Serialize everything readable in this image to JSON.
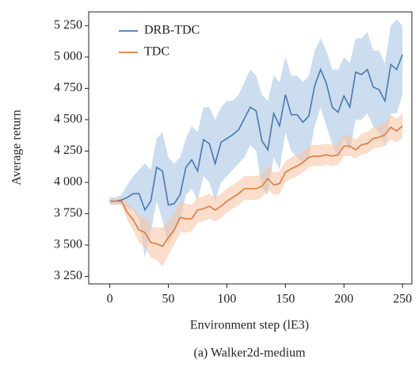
{
  "chart_data": {
    "type": "line",
    "caption": "(a) Walker2d-medium",
    "x_label": "Environment step (lE3)",
    "y_label": "Average return",
    "x": [
      0,
      5,
      10,
      15,
      20,
      25,
      30,
      35,
      40,
      45,
      50,
      55,
      60,
      65,
      70,
      75,
      80,
      85,
      90,
      95,
      100,
      105,
      110,
      115,
      120,
      125,
      130,
      135,
      140,
      145,
      150,
      155,
      160,
      165,
      170,
      175,
      180,
      185,
      190,
      195,
      200,
      205,
      210,
      215,
      220,
      225,
      230,
      235,
      240,
      245,
      250
    ],
    "xlim": [
      -18,
      258
    ],
    "xticks": [
      0,
      50,
      100,
      150,
      200,
      250
    ],
    "ylim": [
      3190,
      5360
    ],
    "yticks": [
      {
        "value": 3250,
        "label": "3 250"
      },
      {
        "value": 3500,
        "label": "3 500"
      },
      {
        "value": 3750,
        "label": "3 750"
      },
      {
        "value": 4000,
        "label": "4 000"
      },
      {
        "value": 4250,
        "label": "4 250"
      },
      {
        "value": 4500,
        "label": "4 500"
      },
      {
        "value": 4750,
        "label": "4 750"
      },
      {
        "value": 5000,
        "label": "5 000"
      },
      {
        "value": 5250,
        "label": "5 250"
      }
    ],
    "legend": "upper left",
    "series": [
      {
        "name": "DRB-TDC",
        "color": "#4a77b0",
        "band_color": "#a9c6e2",
        "values": [
          3850,
          3850,
          3860,
          3880,
          3910,
          3910,
          3780,
          3850,
          4120,
          4090,
          3820,
          3830,
          3900,
          4120,
          4180,
          4090,
          4340,
          4310,
          4150,
          4320,
          4350,
          4380,
          4420,
          4510,
          4600,
          4570,
          4330,
          4260,
          4550,
          4450,
          4700,
          4540,
          4540,
          4480,
          4530,
          4770,
          4900,
          4790,
          4600,
          4560,
          4690,
          4600,
          4880,
          4860,
          4900,
          4760,
          4740,
          4650,
          4940,
          4900,
          5020
        ],
        "lower": [
          3820,
          3820,
          3830,
          3800,
          3780,
          3700,
          3400,
          3600,
          3850,
          3700,
          3500,
          3600,
          3700,
          3900,
          3950,
          3850,
          4050,
          4000,
          3850,
          4000,
          4050,
          4100,
          4150,
          4200,
          4300,
          4250,
          3950,
          3900,
          4200,
          4100,
          4400,
          4250,
          4200,
          4150,
          4200,
          4450,
          4600,
          4450,
          4300,
          4200,
          4350,
          4250,
          4500,
          4500,
          4550,
          4450,
          4400,
          4300,
          4550,
          4550,
          4700
        ],
        "upper": [
          3880,
          3880,
          3900,
          3980,
          4050,
          4100,
          4150,
          4100,
          4350,
          4400,
          4200,
          4150,
          4200,
          4350,
          4450,
          4400,
          4600,
          4600,
          4500,
          4600,
          4650,
          4650,
          4700,
          4800,
          4900,
          4850,
          4700,
          4650,
          4850,
          4800,
          5000,
          4850,
          4850,
          4800,
          4850,
          5050,
          5150,
          5050,
          4900,
          4900,
          5000,
          4950,
          5150,
          5150,
          5200,
          5050,
          5050,
          4950,
          5250,
          5300,
          5250
        ]
      },
      {
        "name": "TDC",
        "color": "#e07b3f",
        "band_color": "#f6c6a8",
        "values": [
          3850,
          3850,
          3850,
          3760,
          3700,
          3620,
          3600,
          3520,
          3510,
          3490,
          3560,
          3620,
          3720,
          3710,
          3710,
          3780,
          3790,
          3810,
          3780,
          3810,
          3850,
          3880,
          3910,
          3950,
          3950,
          3950,
          3970,
          4030,
          3980,
          3990,
          4080,
          4110,
          4130,
          4160,
          4200,
          4210,
          4210,
          4220,
          4210,
          4220,
          4290,
          4290,
          4260,
          4300,
          4310,
          4350,
          4360,
          4380,
          4440,
          4410,
          4450
        ],
        "lower": [
          3830,
          3830,
          3820,
          3700,
          3620,
          3520,
          3480,
          3400,
          3380,
          3330,
          3420,
          3500,
          3600,
          3600,
          3610,
          3680,
          3690,
          3710,
          3690,
          3720,
          3760,
          3790,
          3820,
          3860,
          3860,
          3860,
          3880,
          3940,
          3900,
          3910,
          4000,
          4030,
          4050,
          4080,
          4120,
          4130,
          4130,
          4140,
          4130,
          4140,
          4210,
          4210,
          4190,
          4220,
          4230,
          4270,
          4280,
          4290,
          4340,
          4320,
          4350
        ],
        "upper": [
          3870,
          3870,
          3880,
          3830,
          3790,
          3730,
          3720,
          3650,
          3640,
          3640,
          3700,
          3750,
          3850,
          3830,
          3820,
          3880,
          3890,
          3910,
          3880,
          3910,
          3950,
          3980,
          4010,
          4050,
          4050,
          4050,
          4070,
          4130,
          4080,
          4090,
          4170,
          4200,
          4220,
          4250,
          4290,
          4300,
          4300,
          4310,
          4300,
          4310,
          4380,
          4380,
          4340,
          4390,
          4400,
          4440,
          4450,
          4480,
          4540,
          4510,
          4550
        ]
      }
    ]
  }
}
